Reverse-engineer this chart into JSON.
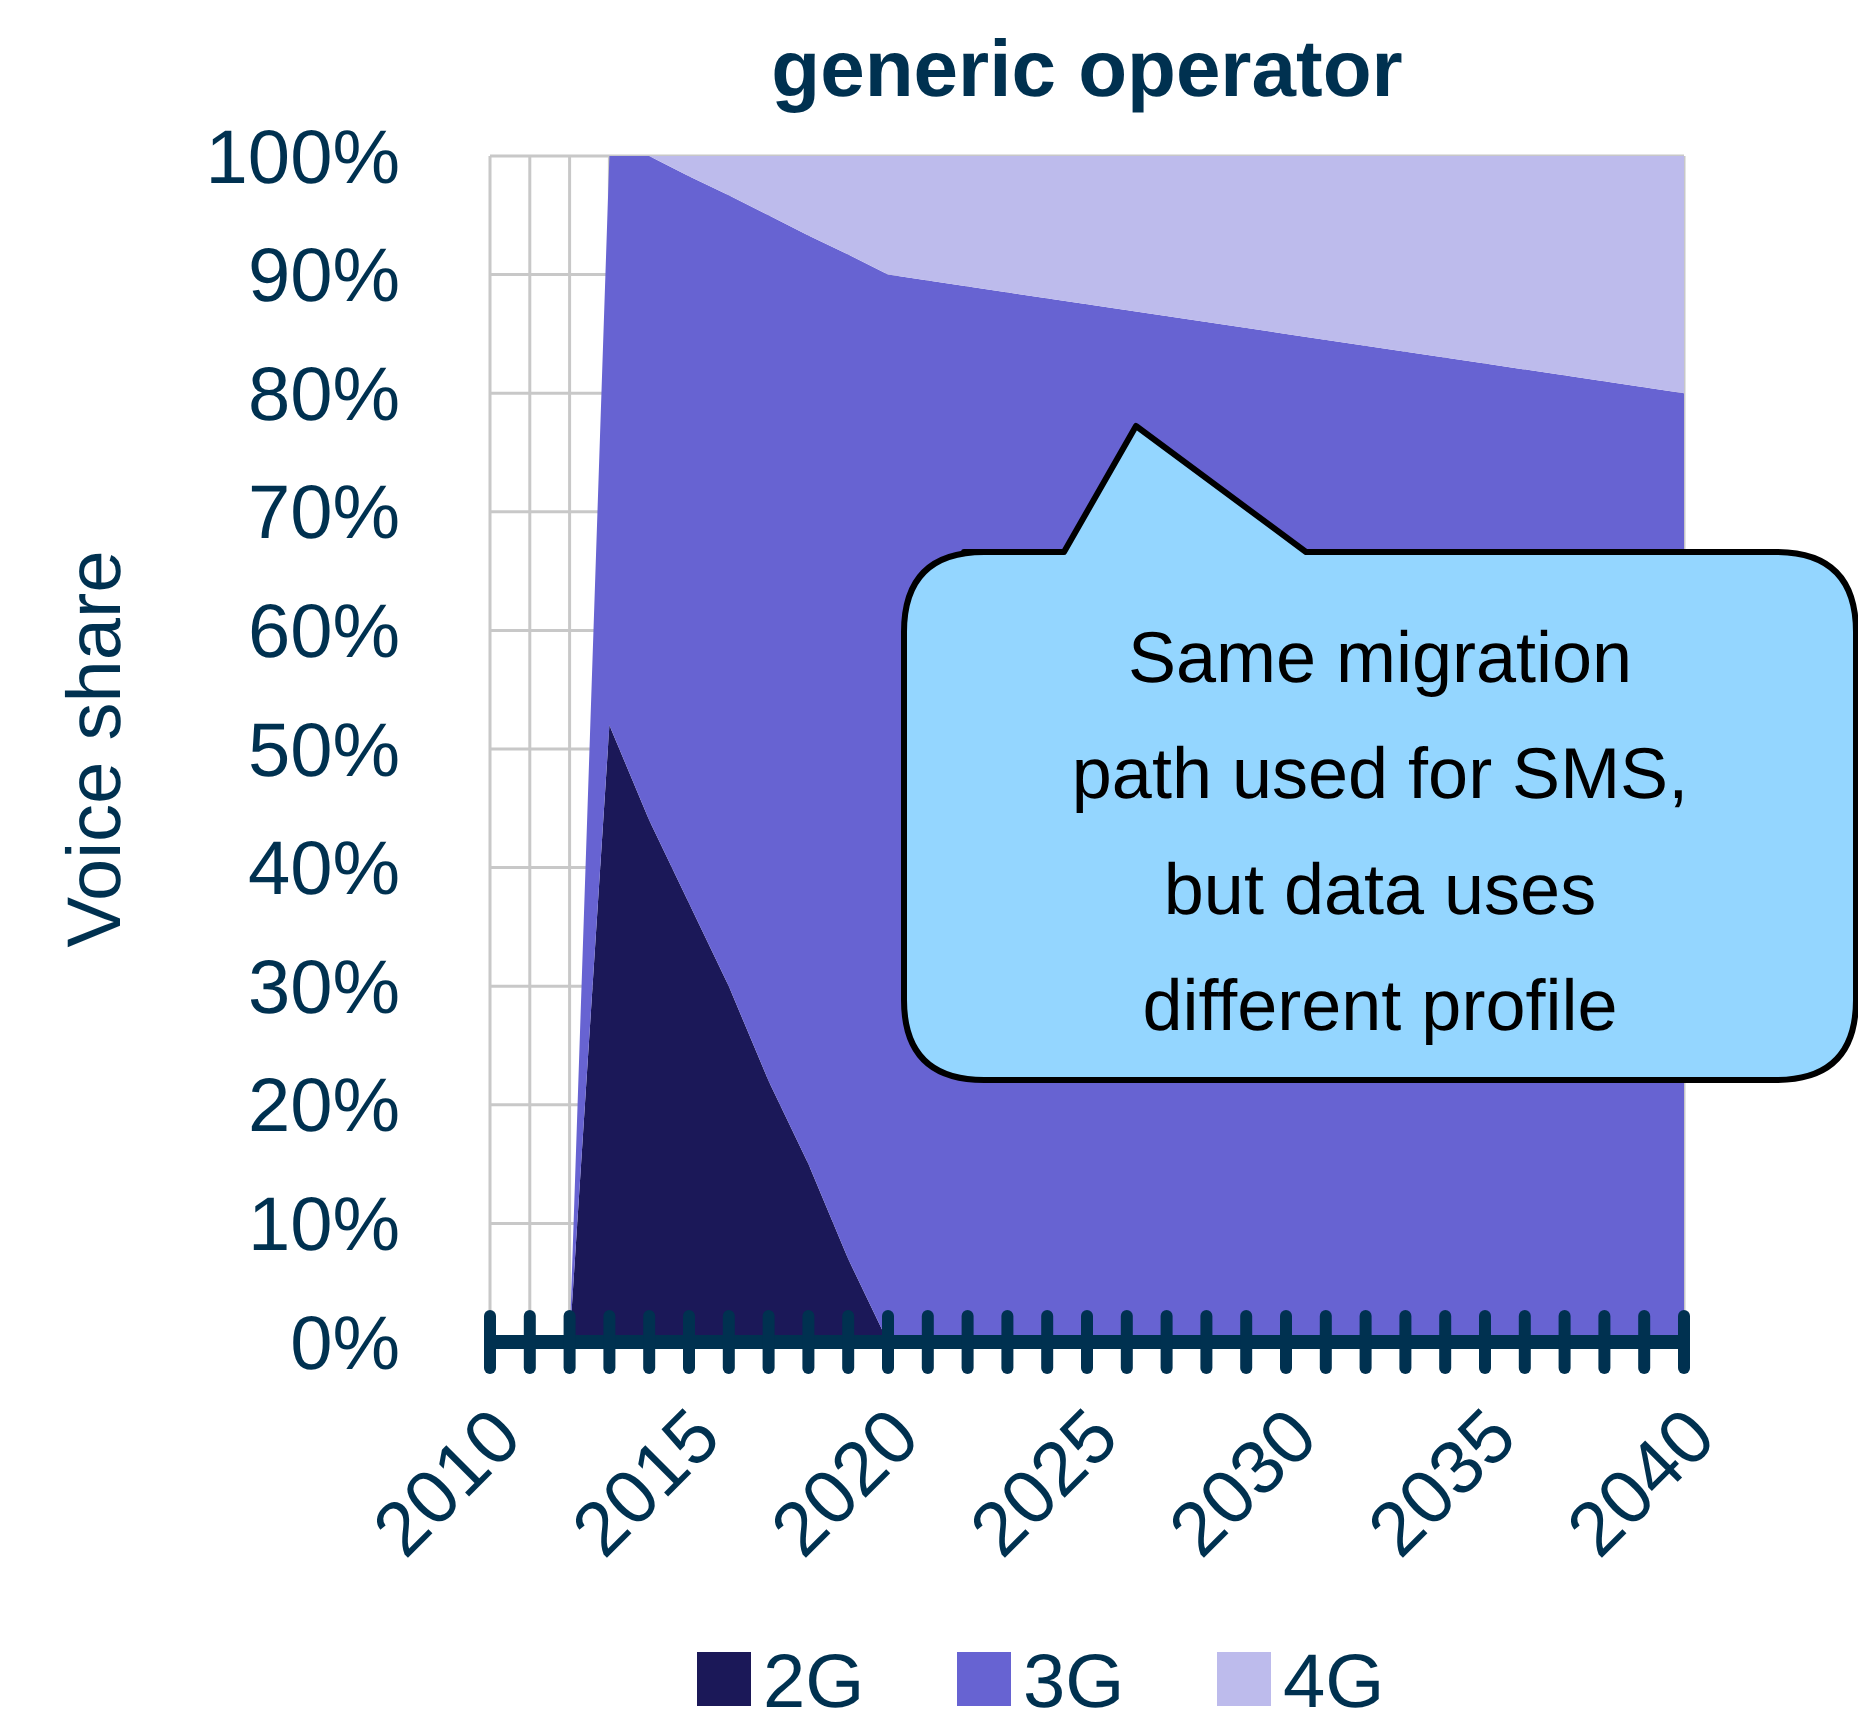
{
  "chart_data": {
    "type": "area",
    "stacked": true,
    "title": "generic operator",
    "ylabel": "Voice share",
    "x": [
      2012,
      2013,
      2014,
      2015,
      2016,
      2017,
      2018,
      2019,
      2020,
      2025,
      2030,
      2035,
      2040
    ],
    "series": [
      {
        "name": "2G",
        "color": "#1b1858",
        "values": [
          0,
          52,
          44,
          37,
          30,
          22,
          15,
          7,
          0,
          0,
          0,
          0,
          0
        ]
      },
      {
        "name": "3G",
        "color": "#6763d2",
        "values": [
          0,
          48,
          56,
          61.3,
          66.7,
          73,
          78.3,
          84.7,
          90,
          87.5,
          85,
          82.5,
          80
        ]
      },
      {
        "name": "4G",
        "color": "#bdbbec",
        "values": [
          null,
          null,
          0,
          1.7,
          3.3,
          5,
          6.7,
          8.3,
          10,
          12.5,
          15,
          17.5,
          20
        ]
      }
    ],
    "xlim": [
      2010,
      2040
    ],
    "xticks": [
      2010,
      {
        "value": 2011,
        "label": null
      },
      {
        "value": 2012,
        "label": null
      },
      {
        "value": 2013,
        "label": null
      },
      {
        "value": 2014,
        "label": null
      },
      2015,
      {
        "value": 2016,
        "label": null
      },
      {
        "value": 2017,
        "label": null
      },
      {
        "value": 2018,
        "label": null
      },
      {
        "value": 2019,
        "label": null
      },
      2020,
      {
        "value": 2021,
        "label": null
      },
      {
        "value": 2022,
        "label": null
      },
      {
        "value": 2023,
        "label": null
      },
      {
        "value": 2024,
        "label": null
      },
      2025,
      {
        "value": 2026,
        "label": null
      },
      {
        "value": 2027,
        "label": null
      },
      {
        "value": 2028,
        "label": null
      },
      {
        "value": 2029,
        "label": null
      },
      2030,
      {
        "value": 2031,
        "label": null
      },
      {
        "value": 2032,
        "label": null
      },
      {
        "value": 2033,
        "label": null
      },
      {
        "value": 2034,
        "label": null
      },
      2035,
      {
        "value": 2036,
        "label": null
      },
      {
        "value": 2037,
        "label": null
      },
      {
        "value": 2038,
        "label": null
      },
      {
        "value": 2039,
        "label": null
      },
      2040
    ],
    "ylim": [
      0,
      100
    ],
    "yticks": [
      {
        "value": 0,
        "label": "0%"
      },
      {
        "value": 10,
        "label": "10%"
      },
      {
        "value": 20,
        "label": "20%"
      },
      {
        "value": 30,
        "label": "30%"
      },
      {
        "value": 40,
        "label": "40%"
      },
      {
        "value": 50,
        "label": "50%"
      },
      {
        "value": 60,
        "label": "60%"
      },
      {
        "value": 70,
        "label": "70%"
      },
      {
        "value": 80,
        "label": "80%"
      },
      {
        "value": 90,
        "label": "90%"
      },
      {
        "value": 100,
        "label": "100%"
      }
    ],
    "grid": true,
    "legend": "bottom",
    "annotations": [
      "Same migration path used for SMS, but data uses different profile"
    ]
  }
}
